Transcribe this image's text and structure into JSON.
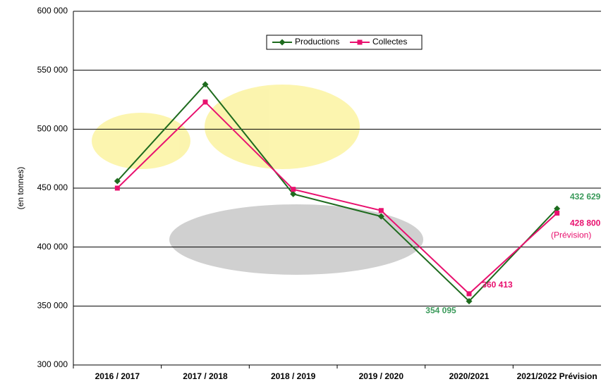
{
  "chart_data": {
    "type": "line",
    "y_label": "(en tonnes)",
    "categories": [
      "2016 / 2017",
      "2017 / 2018",
      "2018 / 2019",
      "2019 / 2020",
      "2020/2021",
      "2021/2022 Prévision"
    ],
    "series": [
      {
        "name": "Productions",
        "color": "#1e6b1e",
        "marker": "diamond",
        "values": [
          456000,
          538000,
          445000,
          426000,
          354095,
          432629
        ],
        "value_labels": [
          null,
          null,
          null,
          null,
          "354 095",
          "432 629"
        ],
        "label_color": "#3a9a5a"
      },
      {
        "name": "Collectes",
        "color": "#e8106e",
        "marker": "square",
        "values": [
          450000,
          523000,
          449000,
          431000,
          360413,
          428800
        ],
        "value_labels": [
          null,
          null,
          null,
          null,
          "360 413",
          "428 800"
        ],
        "label_color": "#e8106e"
      }
    ],
    "annotation": "(Prévision)",
    "ylim": [
      300000,
      600000
    ],
    "yticks": [
      {
        "value": 300000,
        "label": "300 000"
      },
      {
        "value": 350000,
        "label": "350 000"
      },
      {
        "value": 400000,
        "label": "400 000"
      },
      {
        "value": 450000,
        "label": "450 000"
      },
      {
        "value": 500000,
        "label": "500 000"
      },
      {
        "value": 550000,
        "label": "550 000"
      },
      {
        "value": 600000,
        "label": "600 000"
      }
    ],
    "grid": true,
    "legend": "top"
  }
}
